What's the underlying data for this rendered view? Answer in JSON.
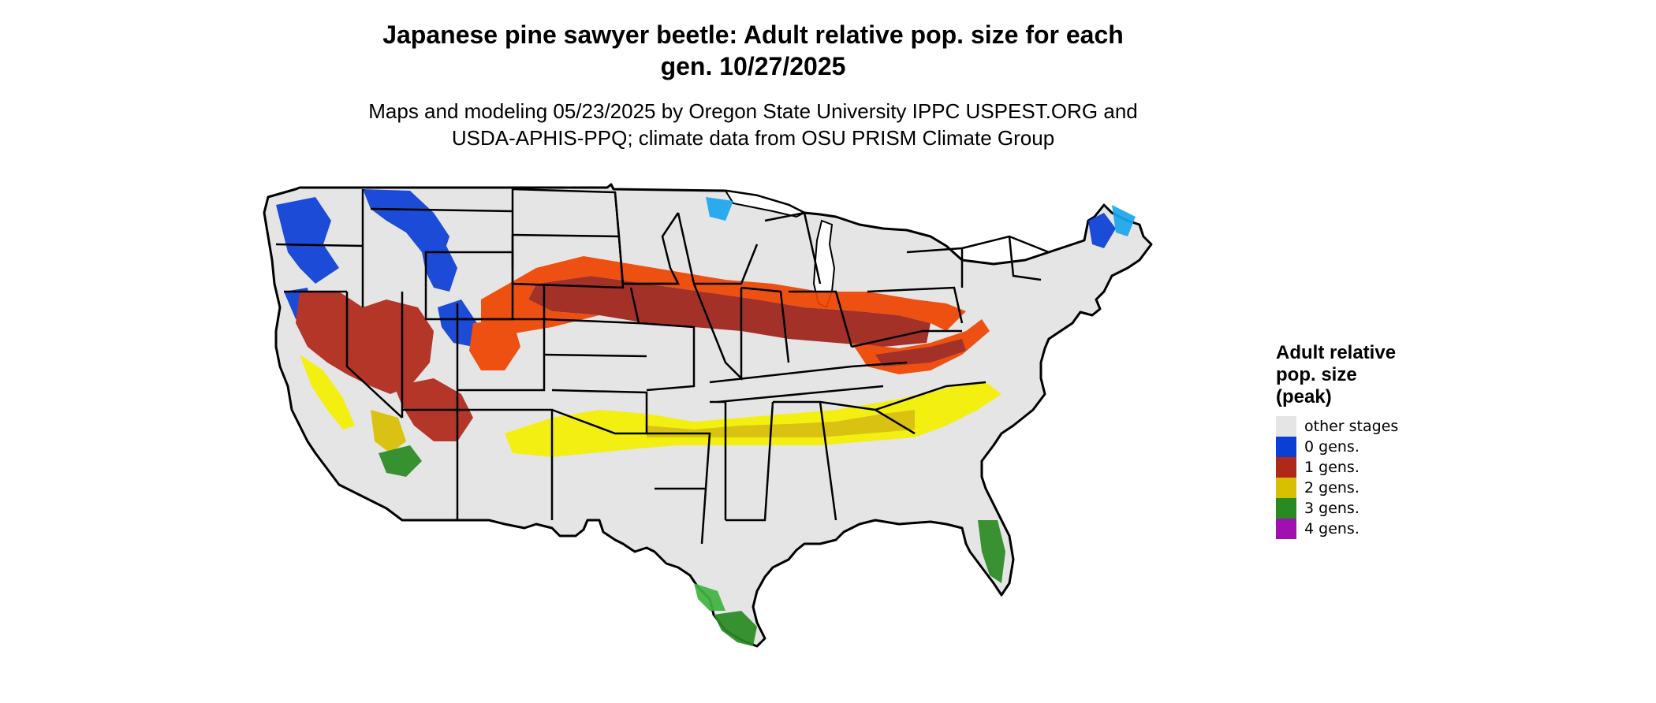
{
  "header": {
    "title_line1": "Japanese pine sawyer beetle: Adult relative pop. size for each",
    "title_line2": "gen. 10/27/2025",
    "subtitle_line1": "Maps and modeling 05/23/2025 by Oregon State University IPPC USPEST.ORG and",
    "subtitle_line2": "USDA-APHIS-PPQ; climate data from OSU PRISM Climate Group"
  },
  "legend": {
    "title_line1": "Adult relative",
    "title_line2": "pop. size",
    "title_line3": "(peak)",
    "items": [
      {
        "label": "other stages",
        "color": "#e5e5e5"
      },
      {
        "label": "0 gens.",
        "color": "#0a3fd6"
      },
      {
        "label": "1 gens.",
        "color": "#b0281a"
      },
      {
        "label": "2 gens.",
        "color": "#d8c000"
      },
      {
        "label": "3 gens.",
        "color": "#2a8a22"
      },
      {
        "label": "4 gens.",
        "color": "#a010b0"
      }
    ]
  },
  "map": {
    "region": "Contiguous United States",
    "background_color": "#e5e5e5",
    "border_color": "#000000",
    "extra_colors": {
      "light_blue": "#1aa7ee",
      "orange": "#ee4400",
      "yellow": "#f5f000",
      "dark_red": "#9e2218",
      "light_green": "#3fb33f"
    }
  }
}
